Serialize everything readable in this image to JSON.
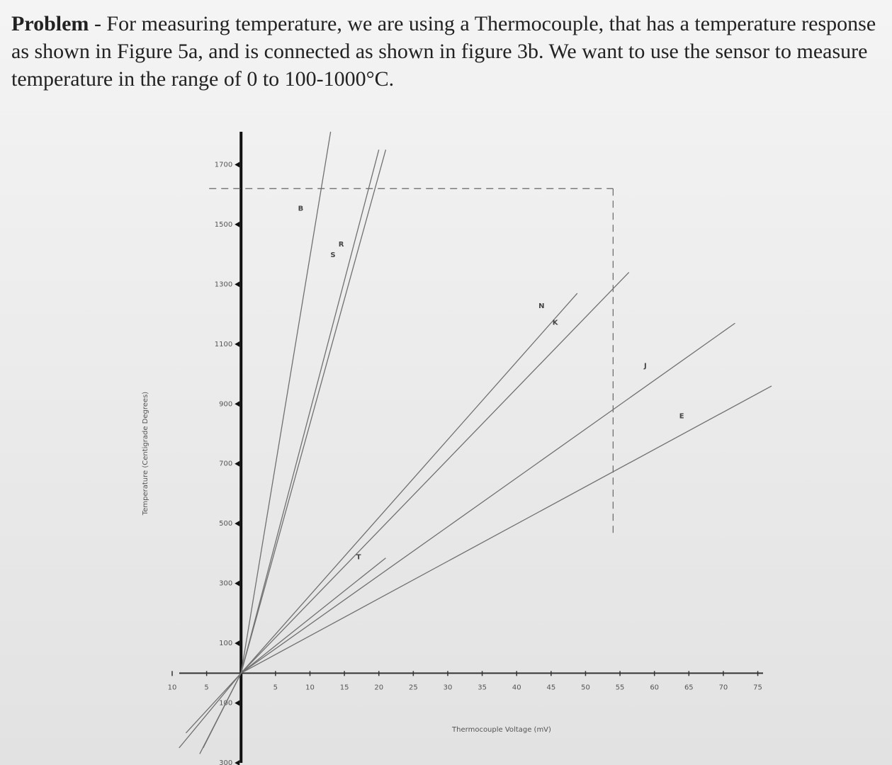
{
  "problem_label": "Problem",
  "problem_text": "- For measuring temperature, we are using a Thermocouple, that has a temperature response as shown in Figure 5a, and is connected as shown in figure 3b. We want to use the sensor to measure temperature in the range of 0 to 100-1000°C.",
  "chart_data": {
    "type": "line",
    "x_label": "Thermocouple Voltage (mV)",
    "y_label": "Temperature (Centigrade Degrees)",
    "xlim": [
      -10,
      77
    ],
    "ylim": [
      -300,
      1810
    ],
    "xticks": [
      {
        "value": -10,
        "label": "10"
      },
      {
        "value": -5,
        "label": "5"
      },
      5,
      10,
      15,
      20,
      25,
      30,
      35,
      40,
      45,
      50,
      55,
      60,
      65,
      70,
      75
    ],
    "yticks": [
      {
        "value": -300,
        "label": "300"
      },
      {
        "value": -100,
        "label": "100"
      },
      100,
      300,
      500,
      700,
      900,
      1100,
      1300,
      1500,
      1700
    ],
    "color": "#707070",
    "series": [
      {
        "name": "B",
        "x": [
          0,
          13
        ],
        "values": [
          0,
          1810
        ]
      },
      {
        "name": "S",
        "x": [
          0,
          20
        ],
        "values": [
          0,
          1750
        ]
      },
      {
        "name": "R",
        "x": [
          0,
          21
        ],
        "values": [
          0,
          1750
        ]
      },
      {
        "name": "N",
        "x": [
          0,
          48.8
        ],
        "values": [
          0,
          1270
        ]
      },
      {
        "name": "K",
        "x": [
          -6,
          0,
          56.3
        ],
        "values": [
          -270,
          0,
          1340
        ]
      },
      {
        "name": "J",
        "x": [
          -8,
          0,
          71.7
        ],
        "values": [
          -200,
          0,
          1170
        ]
      },
      {
        "name": "E",
        "x": [
          -9,
          0,
          77
        ],
        "values": [
          -250,
          0,
          960
        ]
      },
      {
        "name": "T",
        "x": [
          -5.5,
          0,
          21
        ],
        "values": [
          -250,
          0,
          385
        ]
      }
    ],
    "reference_lines": {
      "y": 1620,
      "x": 54,
      "y_end": 460
    }
  }
}
